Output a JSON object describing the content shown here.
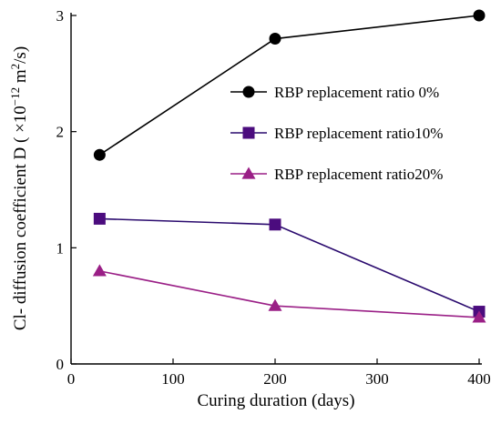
{
  "chart_data": {
    "type": "line",
    "xlabel": "Curing duration (days)",
    "ylabel_main": "Cl- diffusion coefficient D ( ×10",
    "ylabel_exp": "−12",
    "ylabel_unit": " m",
    "ylabel_unit_exp": "2",
    "ylabel_tail": "/s)",
    "xlim": [
      0,
      400
    ],
    "ylim": [
      0,
      3
    ],
    "xticks": [
      0,
      100,
      200,
      300,
      400
    ],
    "yticks": [
      0,
      1,
      2,
      3
    ],
    "grid": false,
    "legend_position": "right-middle",
    "series": [
      {
        "name": "RBP replacement ratio 0%",
        "marker": "circle",
        "line_color": "#000000",
        "marker_color": "#000000",
        "x": [
          28,
          200,
          400
        ],
        "y": [
          1.8,
          2.8,
          3.0
        ]
      },
      {
        "name": "RBP replacement ratio10%",
        "marker": "square",
        "line_color": "#2a0a6e",
        "marker_color": "#4b0c7e",
        "x": [
          28,
          200,
          400
        ],
        "y": [
          1.25,
          1.2,
          0.45
        ]
      },
      {
        "name": "RBP replacement ratio20%",
        "marker": "triangle",
        "line_color": "#9a1f86",
        "marker_color": "#9a1f86",
        "x": [
          28,
          200,
          400
        ],
        "y": [
          0.8,
          0.5,
          0.4
        ]
      }
    ]
  }
}
